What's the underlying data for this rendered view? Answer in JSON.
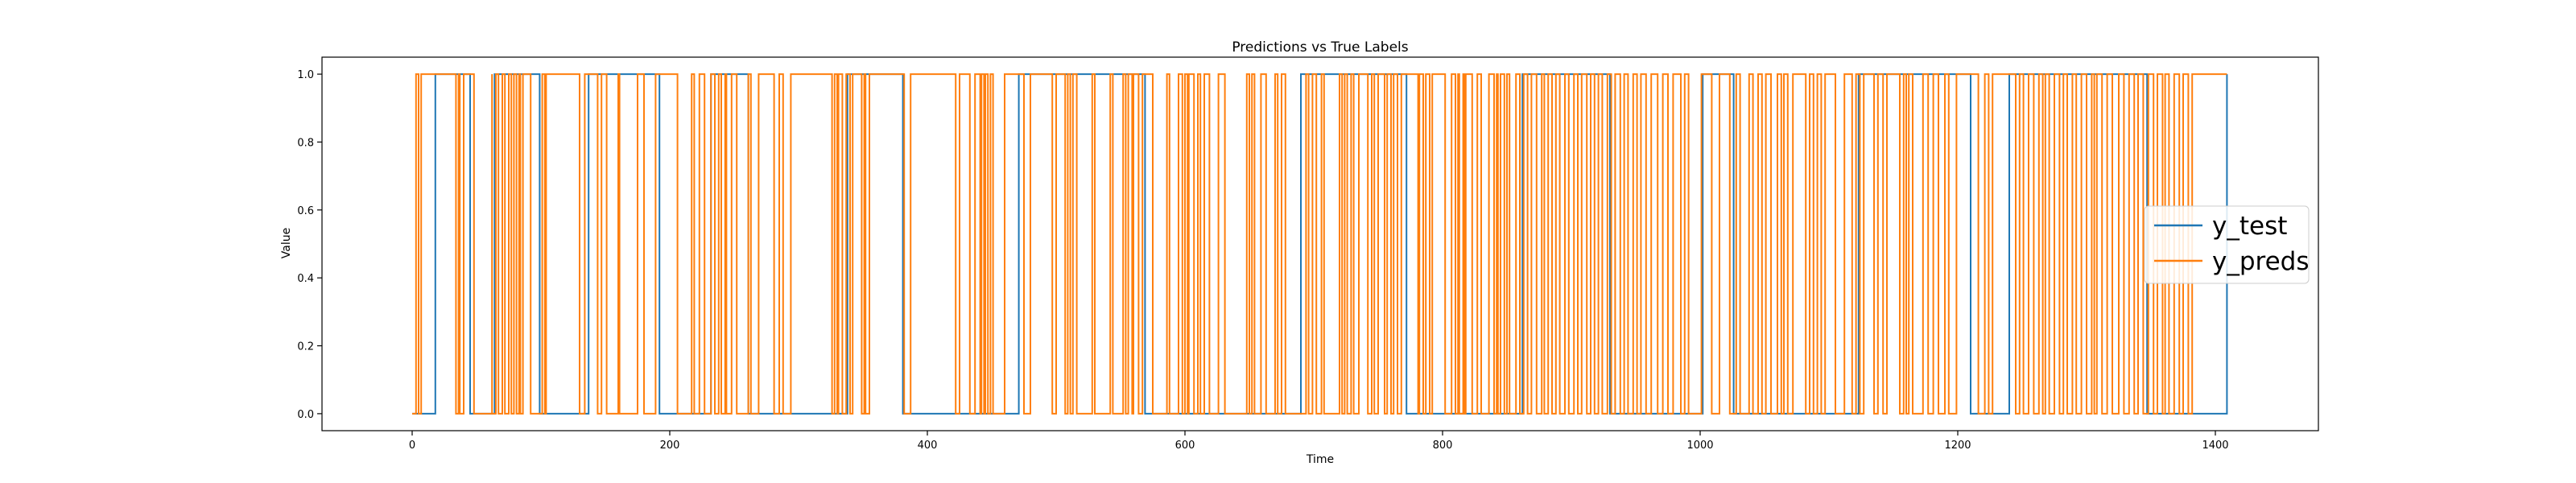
{
  "chart_data": {
    "type": "line",
    "title": "Predictions vs True Labels",
    "xlabel": "Time",
    "ylabel": "Value",
    "xlim": [
      -70,
      1480
    ],
    "ylim": [
      -0.05,
      1.05
    ],
    "xticks": [
      0,
      200,
      400,
      600,
      800,
      1000,
      1200,
      1400
    ],
    "yticks": [
      0.0,
      0.2,
      0.4,
      0.6,
      0.8,
      1.0
    ],
    "xtick_labels": [
      "0",
      "200",
      "400",
      "600",
      "800",
      "1000",
      "1200",
      "1400"
    ],
    "ytick_labels": [
      "0.0",
      "0.2",
      "0.4",
      "0.6",
      "0.8",
      "1.0"
    ],
    "grid": false,
    "legend_position": "right",
    "series": [
      {
        "name": "y_test",
        "color": "#1f77b4",
        "x_start": 0,
        "x_end": 1409,
        "start_value": 0,
        "transitions": [
          18,
          45,
          64,
          99,
          137,
          192,
          232,
          261,
          338,
          381,
          471,
          569,
          690,
          772,
          862,
          930,
          1002,
          1026,
          1123,
          1210,
          1240,
          1347,
          1409
        ]
      },
      {
        "name": "y_preds",
        "color": "#ff7f0e",
        "x_start": 0,
        "x_end": 1409,
        "start_value": 0,
        "transitions": [
          3,
          5,
          7,
          34,
          36,
          37,
          40,
          48,
          62,
          62,
          65,
          67,
          70,
          72,
          75,
          77,
          79,
          81,
          83,
          84,
          86,
          92,
          101,
          103,
          104,
          130,
          134,
          144,
          147,
          151,
          160,
          161,
          175,
          180,
          189,
          206,
          217,
          219,
          223,
          227,
          232,
          235,
          238,
          240,
          243,
          244,
          248,
          252,
          261,
          263,
          269,
          281,
          285,
          288,
          294,
          326,
          328,
          330,
          331,
          334,
          337,
          340,
          342,
          349,
          351,
          352,
          355,
          382,
          387,
          422,
          425,
          433,
          437,
          441,
          442,
          444,
          445,
          447,
          449,
          451,
          460,
          475,
          480,
          497,
          500,
          507,
          509,
          511,
          513,
          516,
          528,
          530,
          542,
          544,
          552,
          554,
          556,
          559,
          560,
          564,
          567,
          575,
          586,
          588,
          595,
          598,
          600,
          602,
          603,
          607,
          610,
          612,
          615,
          619,
          626,
          631,
          648,
          650,
          652,
          654,
          659,
          663,
          670,
          672,
          675,
          678,
          694,
          696,
          699,
          702,
          706,
          708,
          720,
          722,
          724,
          726,
          729,
          731,
          735,
          742,
          745,
          747,
          750,
          755,
          757,
          760,
          762,
          765,
          768,
          781,
          782,
          785,
          787,
          790,
          792,
          802,
          807,
          810,
          812,
          813,
          816,
          817,
          818,
          823,
          827,
          830,
          836,
          840,
          842,
          843,
          845,
          848,
          850,
          852,
          857,
          860,
          863,
          866,
          869,
          873,
          877,
          879,
          882,
          885,
          888,
          891,
          895,
          898,
          902,
          905,
          908,
          912,
          915,
          918,
          921,
          924,
          928,
          931,
          934,
          938,
          941,
          944,
          948,
          951,
          954,
          958,
          962,
          967,
          971,
          975,
          979,
          985,
          988,
          991,
          1001,
          1009,
          1015,
          1023,
          1028,
          1031,
          1038,
          1041,
          1045,
          1048,
          1051,
          1055,
          1060,
          1063,
          1065,
          1068,
          1072,
          1082,
          1085,
          1088,
          1091,
          1094,
          1097,
          1105,
          1112,
          1118,
          1121,
          1124,
          1127,
          1135,
          1138,
          1142,
          1145,
          1155,
          1158,
          1160,
          1162,
          1165,
          1173,
          1177,
          1181,
          1185,
          1190,
          1193,
          1199,
          1216,
          1221,
          1224,
          1227,
          1245,
          1248,
          1251,
          1255,
          1259,
          1263,
          1266,
          1268,
          1271,
          1275,
          1279,
          1282,
          1285,
          1289,
          1292,
          1296,
          1300,
          1304,
          1306,
          1308,
          1312,
          1316,
          1320,
          1325,
          1329,
          1333,
          1337,
          1340,
          1344,
          1348,
          1352,
          1355,
          1359,
          1361,
          1364,
          1368,
          1372,
          1375,
          1379,
          1382
        ]
      }
    ]
  }
}
